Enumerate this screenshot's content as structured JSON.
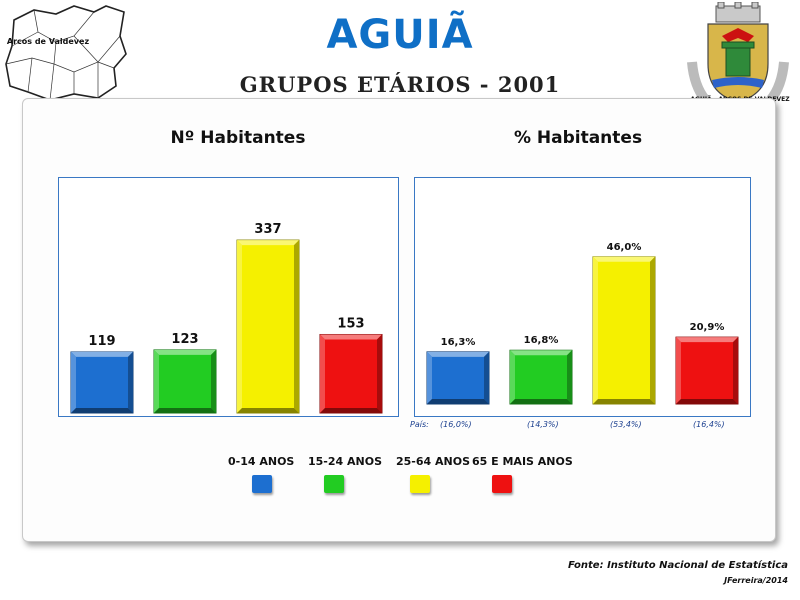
{
  "header": {
    "title": "AGUIÃ",
    "subtitle": "GRUPOS ETÁRIOS - 2001",
    "map_label": "Arcos de Valdevez",
    "coat_of_arms_text": "AGUIÃ - ARCOS DE VALDEVEZ"
  },
  "chart_data": [
    {
      "type": "bar",
      "title": "Nº Habitantes",
      "categories": [
        "0-14 ANOS",
        "15-24 ANOS",
        "25-64 ANOS",
        "65 E MAIS ANOS"
      ],
      "values": [
        119,
        123,
        337,
        153
      ],
      "value_labels": [
        "119",
        "123",
        "337",
        "153"
      ],
      "colors": [
        "#1d6fd0",
        "#22cc22",
        "#f5f000",
        "#ee1111"
      ],
      "ylim": [
        0,
        380
      ],
      "grid": false
    },
    {
      "type": "bar",
      "title": "% Habitantes",
      "categories": [
        "0-14 ANOS",
        "15-24 ANOS",
        "25-64 ANOS",
        "65 E MAIS ANOS"
      ],
      "values": [
        16.3,
        16.8,
        46.0,
        20.9
      ],
      "value_labels": [
        "16,3%",
        "16,8%",
        "46,0%",
        "20,9%"
      ],
      "colors": [
        "#1d6fd0",
        "#22cc22",
        "#f5f000",
        "#ee1111"
      ],
      "ylim": [
        0,
        55
      ],
      "grid": false,
      "country_label": "País:",
      "country_values": [
        "(16,0%)",
        "(14,3%)",
        "(53,4%)",
        "(16,4%)"
      ]
    }
  ],
  "legend": {
    "items": [
      {
        "label": "0-14 ANOS",
        "color": "#1d6fd0"
      },
      {
        "label": "15-24 ANOS",
        "color": "#22cc22"
      },
      {
        "label": "25-64 ANOS",
        "color": "#f5f000"
      },
      {
        "label": "65 E MAIS ANOS",
        "color": "#ee1111"
      }
    ]
  },
  "footer": {
    "source": "Fonte: Instituto Nacional de Estatística",
    "author": "JFerreira/2014"
  }
}
